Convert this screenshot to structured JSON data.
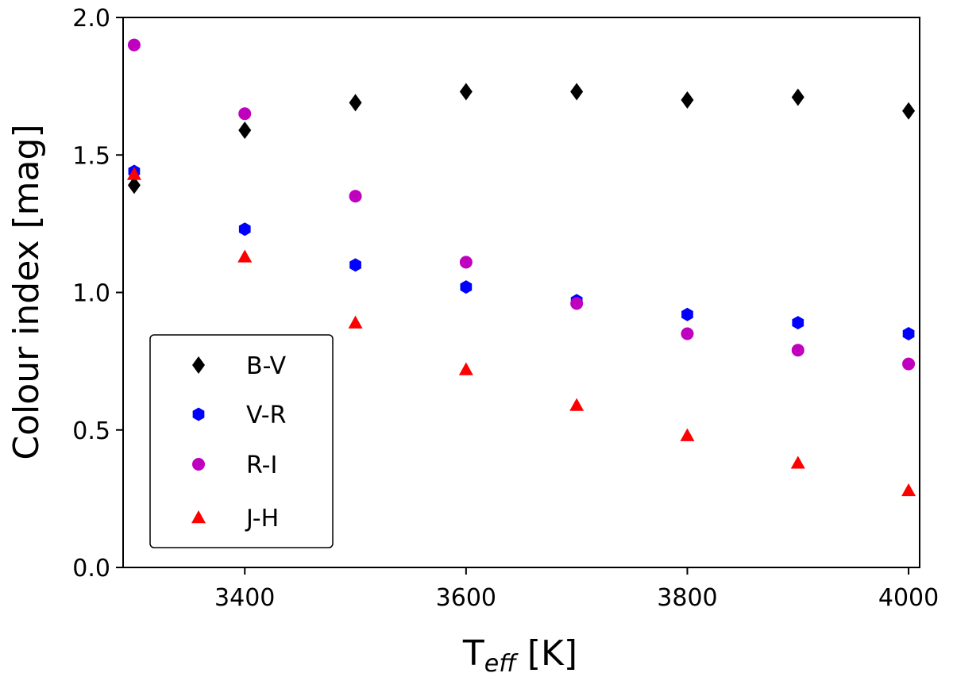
{
  "chart_data": {
    "type": "scatter",
    "title": "",
    "xlabel": {
      "main": "T",
      "sub": "eff",
      "unit": " [K]"
    },
    "ylabel": "Colour index [mag]",
    "xlim": [
      3290,
      4010
    ],
    "ylim": [
      0.0,
      2.0
    ],
    "xticks": [
      3400,
      3600,
      3800,
      4000
    ],
    "yticks": [
      0.0,
      0.5,
      1.0,
      1.5,
      2.0
    ],
    "xtick_labels": [
      "3400",
      "3600",
      "3800",
      "4000"
    ],
    "ytick_labels": [
      "0.0",
      "0.5",
      "1.0",
      "1.5",
      "2.0"
    ],
    "grid": false,
    "legend_position": "lower-left",
    "series": [
      {
        "name": "B-V",
        "marker": "diamond",
        "color": "#000000",
        "x": [
          3300,
          3400,
          3500,
          3600,
          3700,
          3800,
          3900,
          4000
        ],
        "y": [
          1.39,
          1.59,
          1.69,
          1.73,
          1.73,
          1.7,
          1.71,
          1.66
        ]
      },
      {
        "name": "V-R",
        "marker": "hexagon",
        "color": "#0000ff",
        "x": [
          3300,
          3400,
          3500,
          3600,
          3700,
          3800,
          3900,
          4000
        ],
        "y": [
          1.44,
          1.23,
          1.1,
          1.02,
          0.97,
          0.92,
          0.89,
          0.85
        ]
      },
      {
        "name": "R-I",
        "marker": "circle",
        "color": "#bf00bf",
        "x": [
          3300,
          3400,
          3500,
          3600,
          3700,
          3800,
          3900,
          4000
        ],
        "y": [
          1.9,
          1.65,
          1.35,
          1.11,
          0.96,
          0.85,
          0.79,
          0.74
        ]
      },
      {
        "name": "J-H",
        "marker": "triangle",
        "color": "#ff0000",
        "x": [
          3300,
          3400,
          3500,
          3600,
          3700,
          3800,
          3900,
          4000
        ],
        "y": [
          1.43,
          1.13,
          0.89,
          0.72,
          0.59,
          0.48,
          0.38,
          0.28
        ]
      }
    ]
  }
}
